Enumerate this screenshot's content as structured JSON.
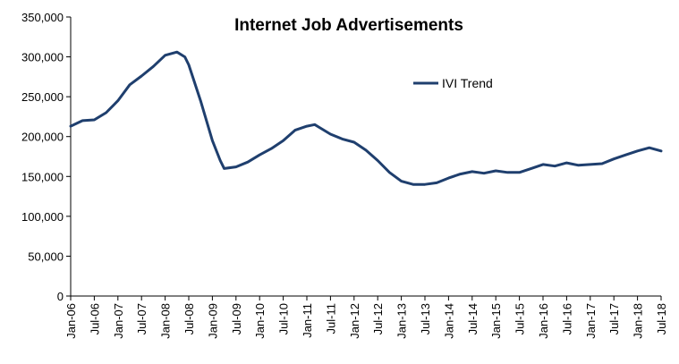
{
  "chart_data": {
    "type": "line",
    "title": "Internet Job Advertisements",
    "xlabel": "",
    "ylabel": "",
    "ylim": [
      0,
      350000
    ],
    "yticks": [
      0,
      50000,
      100000,
      150000,
      200000,
      250000,
      300000,
      350000
    ],
    "ytick_labels": [
      "0",
      "50,000",
      "100,000",
      "150,000",
      "200,000",
      "250,000",
      "300,000",
      "350,000"
    ],
    "x_tick_labels": [
      "Jan-06",
      "Jul-06",
      "Jan-07",
      "Jul-07",
      "Jan-08",
      "Jul-08",
      "Jan-09",
      "Jul-09",
      "Jan-10",
      "Jul-10",
      "Jan-11",
      "Jul-11",
      "Jan-12",
      "Jul-12",
      "Jan-13",
      "Jul-13",
      "Jan-14",
      "Jul-14",
      "Jan-15",
      "Jul-15",
      "Jan-16",
      "Jul-16",
      "Jan-17",
      "Jul-17",
      "Jan-18",
      "Jul-18"
    ],
    "grid": false,
    "legend_position": "top-right",
    "series": [
      {
        "name": "IVI Trend",
        "color": "#1f3f6e",
        "x": [
          "Jan-06",
          "Apr-06",
          "Jul-06",
          "Oct-06",
          "Jan-07",
          "Apr-07",
          "Jul-07",
          "Oct-07",
          "Jan-08",
          "Apr-08",
          "Jun-08",
          "Jul-08",
          "Oct-08",
          "Jan-09",
          "Mar-09",
          "Apr-09",
          "Jul-09",
          "Oct-09",
          "Jan-10",
          "Apr-10",
          "Jul-10",
          "Oct-10",
          "Jan-11",
          "Mar-11",
          "Apr-11",
          "Jul-11",
          "Oct-11",
          "Jan-12",
          "Apr-12",
          "Jul-12",
          "Oct-12",
          "Jan-13",
          "Apr-13",
          "Jul-13",
          "Oct-13",
          "Jan-14",
          "Apr-14",
          "Jul-14",
          "Oct-14",
          "Jan-15",
          "Apr-15",
          "Jul-15",
          "Oct-15",
          "Jan-16",
          "Apr-16",
          "Jul-16",
          "Oct-16",
          "Jan-17",
          "Apr-17",
          "Jul-17",
          "Oct-17",
          "Jan-18",
          "Apr-18",
          "Jul-18"
        ],
        "values": [
          213000,
          220000,
          221000,
          230000,
          245000,
          265000,
          276000,
          288000,
          302000,
          306000,
          300000,
          290000,
          245000,
          195000,
          170000,
          160000,
          162000,
          168000,
          177000,
          185000,
          195000,
          208000,
          213000,
          215000,
          212000,
          203000,
          197000,
          193000,
          183000,
          170000,
          155000,
          144000,
          140000,
          140000,
          142000,
          148000,
          153000,
          156000,
          154000,
          157000,
          155000,
          155000,
          160000,
          165000,
          163000,
          167000,
          164000,
          165000,
          166000,
          172000,
          177000,
          182000,
          186000,
          182000
        ]
      }
    ]
  }
}
